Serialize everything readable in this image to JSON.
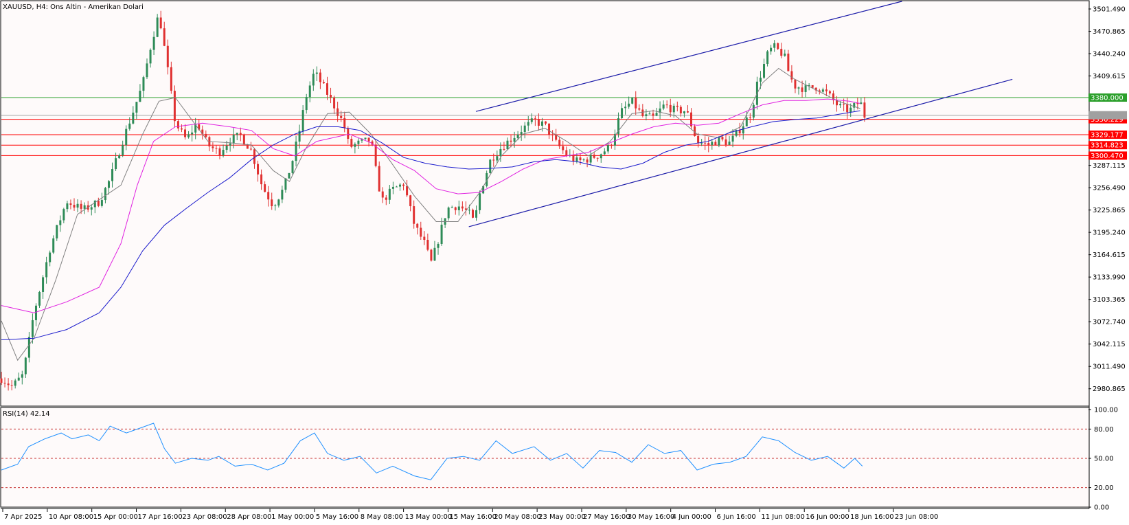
{
  "header": {
    "symbol_label": "XAUUSD, H4:  Ons Altin - Amerikan Dolari"
  },
  "indicator": {
    "label": "RSI(14) 42.14",
    "rsi_value": 42.14,
    "levels": [
      80,
      50,
      20
    ]
  },
  "chart_data": [
    {
      "type": "candlestick",
      "title": "XAUUSD, H4:  Ons Altin - Amerikan Dolari",
      "ylim": [
        2958,
        3510
      ],
      "y_ticks": [
        "3501.490",
        "3470.865",
        "3440.240",
        "3409.615",
        "3380.000",
        "3350.229",
        "3329.177",
        "3314.823",
        "3300.470",
        "3287.115",
        "3256.490",
        "3225.865",
        "3195.240",
        "3164.615",
        "3133.990",
        "3103.365",
        "3072.740",
        "3042.115",
        "3011.490",
        "2980.865"
      ],
      "x_ticks": [
        "7 Apr 2025",
        "10 Apr 08:00",
        "15 Apr 00:00",
        "17 Apr 16:00",
        "23 Apr 08:00",
        "28 Apr 08:00",
        "1 May 00:00",
        "5 May 16:00",
        "8 May 08:00",
        "13 May 00:00",
        "15 May 16:00",
        "20 May 08:00",
        "23 May 00:00",
        "27 May 16:00",
        "30 May 16:00",
        "4 Jun 00:00",
        "6 Jun 16:00",
        "11 Jun 08:00",
        "16 Jun 00:00",
        "18 Jun 16:00",
        "23 Jun 08:00"
      ],
      "horizontal_lines": [
        {
          "price": 3380.0,
          "label": "3380.000",
          "color": "#2ca02c"
        },
        {
          "price": 3350.229,
          "label": "3350.229",
          "color": "#ff0000"
        },
        {
          "price": 3329.177,
          "label": "3329.177",
          "color": "#ff0000"
        },
        {
          "price": 3314.823,
          "label": "3314.823",
          "color": "#ff0000"
        },
        {
          "price": 3300.47,
          "label": "3300.470",
          "color": "#ff0000"
        }
      ],
      "current_price": 3355.786,
      "channel_lines": [
        {
          "name": "upper",
          "from": [
            0.4365,
            3361
          ],
          "to": [
            0.8285,
            3512
          ],
          "color": "#1a1aa8"
        },
        {
          "name": "lower",
          "from": [
            0.43,
            3203
          ],
          "to": [
            0.93,
            3405
          ],
          "color": "#1a1aa8"
        }
      ],
      "price_path": [
        [
          0.0,
          2995
        ],
        [
          0.01,
          2984
        ],
        [
          0.02,
          3000
        ],
        [
          0.03,
          3085
        ],
        [
          0.045,
          3175
        ],
        [
          0.06,
          3238
        ],
        [
          0.075,
          3226
        ],
        [
          0.09,
          3237
        ],
        [
          0.1,
          3268
        ],
        [
          0.11,
          3314
        ],
        [
          0.12,
          3356
        ],
        [
          0.13,
          3398
        ],
        [
          0.138,
          3455
        ],
        [
          0.145,
          3496
        ],
        [
          0.152,
          3428
        ],
        [
          0.16,
          3345
        ],
        [
          0.17,
          3322
        ],
        [
          0.18,
          3345
        ],
        [
          0.19,
          3315
        ],
        [
          0.2,
          3305
        ],
        [
          0.21,
          3322
        ],
        [
          0.22,
          3328
        ],
        [
          0.23,
          3307
        ],
        [
          0.24,
          3258
        ],
        [
          0.25,
          3232
        ],
        [
          0.26,
          3256
        ],
        [
          0.268,
          3295
        ],
        [
          0.275,
          3340
        ],
        [
          0.28,
          3380
        ],
        [
          0.288,
          3415
        ],
        [
          0.295,
          3398
        ],
        [
          0.305,
          3372
        ],
        [
          0.315,
          3343
        ],
        [
          0.32,
          3312
        ],
        [
          0.33,
          3318
        ],
        [
          0.34,
          3322
        ],
        [
          0.345,
          3275
        ],
        [
          0.35,
          3238
        ],
        [
          0.36,
          3254
        ],
        [
          0.37,
          3262
        ],
        [
          0.38,
          3205
        ],
        [
          0.39,
          3178
        ],
        [
          0.395,
          3152
        ],
        [
          0.4,
          3175
        ],
        [
          0.41,
          3228
        ],
        [
          0.42,
          3232
        ],
        [
          0.43,
          3222
        ],
        [
          0.435,
          3208
        ],
        [
          0.44,
          3248
        ],
        [
          0.45,
          3295
        ],
        [
          0.46,
          3312
        ],
        [
          0.47,
          3325
        ],
        [
          0.48,
          3338
        ],
        [
          0.49,
          3348
        ],
        [
          0.5,
          3342
        ],
        [
          0.51,
          3318
        ],
        [
          0.52,
          3302
        ],
        [
          0.53,
          3292
        ],
        [
          0.54,
          3296
        ],
        [
          0.55,
          3302
        ],
        [
          0.56,
          3313
        ],
        [
          0.57,
          3360
        ],
        [
          0.58,
          3375
        ],
        [
          0.59,
          3354
        ],
        [
          0.6,
          3352
        ],
        [
          0.61,
          3370
        ],
        [
          0.62,
          3362
        ],
        [
          0.63,
          3362
        ],
        [
          0.64,
          3320
        ],
        [
          0.65,
          3315
        ],
        [
          0.66,
          3322
        ],
        [
          0.67,
          3318
        ],
        [
          0.68,
          3338
        ],
        [
          0.69,
          3360
        ],
        [
          0.695,
          3398
        ],
        [
          0.7,
          3418
        ],
        [
          0.705,
          3440
        ],
        [
          0.71,
          3450
        ],
        [
          0.72,
          3438
        ],
        [
          0.725,
          3410
        ],
        [
          0.73,
          3396
        ],
        [
          0.74,
          3392
        ],
        [
          0.75,
          3395
        ],
        [
          0.76,
          3385
        ],
        [
          0.77,
          3368
        ],
        [
          0.78,
          3362
        ],
        [
          0.79,
          3375
        ],
        [
          0.794,
          3355
        ]
      ],
      "series": [
        {
          "name": "",
          "color": "#808080",
          "points": [
            [
              0.0,
              3074
            ],
            [
              0.015,
              3020
            ],
            [
              0.03,
              3050
            ],
            [
              0.05,
              3130
            ],
            [
              0.07,
              3220
            ],
            [
              0.09,
              3240
            ],
            [
              0.11,
              3260
            ],
            [
              0.13,
              3330
            ],
            [
              0.145,
              3375
            ],
            [
              0.16,
              3380
            ],
            [
              0.175,
              3350
            ],
            [
              0.19,
              3320
            ],
            [
              0.21,
              3318
            ],
            [
              0.23,
              3315
            ],
            [
              0.25,
              3280
            ],
            [
              0.265,
              3265
            ],
            [
              0.28,
              3310
            ],
            [
              0.3,
              3358
            ],
            [
              0.32,
              3360
            ],
            [
              0.34,
              3330
            ],
            [
              0.36,
              3288
            ],
            [
              0.38,
              3245
            ],
            [
              0.4,
              3210
            ],
            [
              0.42,
              3210
            ],
            [
              0.44,
              3250
            ],
            [
              0.46,
              3300
            ],
            [
              0.48,
              3330
            ],
            [
              0.5,
              3338
            ],
            [
              0.52,
              3320
            ],
            [
              0.54,
              3300
            ],
            [
              0.56,
              3320
            ],
            [
              0.58,
              3358
            ],
            [
              0.6,
              3362
            ],
            [
              0.62,
              3355
            ],
            [
              0.64,
              3330
            ],
            [
              0.66,
              3325
            ],
            [
              0.68,
              3340
            ],
            [
              0.7,
              3400
            ],
            [
              0.715,
              3420
            ],
            [
              0.73,
              3405
            ],
            [
              0.75,
              3390
            ],
            [
              0.77,
              3375
            ],
            [
              0.79,
              3365
            ]
          ]
        },
        {
          "name": "",
          "color": "#e020e0",
          "points": [
            [
              0.0,
              3095
            ],
            [
              0.03,
              3085
            ],
            [
              0.06,
              3100
            ],
            [
              0.09,
              3120
            ],
            [
              0.11,
              3180
            ],
            [
              0.125,
              3260
            ],
            [
              0.14,
              3320
            ],
            [
              0.16,
              3340
            ],
            [
              0.185,
              3345
            ],
            [
              0.21,
              3340
            ],
            [
              0.23,
              3335
            ],
            [
              0.25,
              3310
            ],
            [
              0.27,
              3300
            ],
            [
              0.29,
              3320
            ],
            [
              0.32,
              3330
            ],
            [
              0.34,
              3318
            ],
            [
              0.36,
              3295
            ],
            [
              0.38,
              3280
            ],
            [
              0.4,
              3255
            ],
            [
              0.42,
              3248
            ],
            [
              0.44,
              3250
            ],
            [
              0.46,
              3265
            ],
            [
              0.48,
              3282
            ],
            [
              0.5,
              3295
            ],
            [
              0.52,
              3300
            ],
            [
              0.54,
              3305
            ],
            [
              0.56,
              3318
            ],
            [
              0.58,
              3330
            ],
            [
              0.6,
              3340
            ],
            [
              0.62,
              3345
            ],
            [
              0.64,
              3342
            ],
            [
              0.66,
              3345
            ],
            [
              0.68,
              3358
            ],
            [
              0.7,
              3370
            ],
            [
              0.72,
              3376
            ],
            [
              0.74,
              3376
            ],
            [
              0.76,
              3378
            ],
            [
              0.78,
              3375
            ],
            [
              0.79,
              3372
            ]
          ]
        },
        {
          "name": "",
          "color": "#1a1acc",
          "points": [
            [
              0.0,
              3048
            ],
            [
              0.03,
              3050
            ],
            [
              0.06,
              3062
            ],
            [
              0.09,
              3085
            ],
            [
              0.11,
              3120
            ],
            [
              0.13,
              3170
            ],
            [
              0.15,
              3205
            ],
            [
              0.17,
              3228
            ],
            [
              0.19,
              3250
            ],
            [
              0.21,
              3270
            ],
            [
              0.23,
              3295
            ],
            [
              0.25,
              3315
            ],
            [
              0.27,
              3330
            ],
            [
              0.29,
              3340
            ],
            [
              0.31,
              3340
            ],
            [
              0.33,
              3335
            ],
            [
              0.35,
              3318
            ],
            [
              0.37,
              3298
            ],
            [
              0.39,
              3290
            ],
            [
              0.41,
              3285
            ],
            [
              0.43,
              3282
            ],
            [
              0.45,
              3283
            ],
            [
              0.47,
              3285
            ],
            [
              0.49,
              3292
            ],
            [
              0.51,
              3295
            ],
            [
              0.53,
              3292
            ],
            [
              0.55,
              3285
            ],
            [
              0.57,
              3282
            ],
            [
              0.59,
              3290
            ],
            [
              0.61,
              3305
            ],
            [
              0.63,
              3315
            ],
            [
              0.65,
              3320
            ],
            [
              0.67,
              3332
            ],
            [
              0.69,
              3340
            ],
            [
              0.71,
              3347
            ],
            [
              0.73,
              3350
            ],
            [
              0.75,
              3352
            ],
            [
              0.77,
              3357
            ],
            [
              0.79,
              3362
            ]
          ]
        }
      ]
    },
    {
      "type": "line",
      "title": "RSI(14) 42.14",
      "ylim": [
        0,
        100
      ],
      "y_ticks": [
        "100.00",
        "80.00",
        "50.00",
        "20.00",
        "0.00"
      ],
      "series": [
        {
          "name": "",
          "color": "#1e90ff",
          "points": [
            [
              0.0,
              38
            ],
            [
              0.015,
              44
            ],
            [
              0.025,
              62
            ],
            [
              0.04,
              70
            ],
            [
              0.055,
              76
            ],
            [
              0.065,
              70
            ],
            [
              0.08,
              74
            ],
            [
              0.09,
              68
            ],
            [
              0.1,
              83
            ],
            [
              0.115,
              76
            ],
            [
              0.13,
              82
            ],
            [
              0.14,
              86
            ],
            [
              0.15,
              60
            ],
            [
              0.16,
              45
            ],
            [
              0.175,
              50
            ],
            [
              0.19,
              48
            ],
            [
              0.2,
              52
            ],
            [
              0.215,
              42
            ],
            [
              0.23,
              44
            ],
            [
              0.245,
              38
            ],
            [
              0.26,
              45
            ],
            [
              0.275,
              68
            ],
            [
              0.288,
              76
            ],
            [
              0.3,
              55
            ],
            [
              0.315,
              48
            ],
            [
              0.33,
              52
            ],
            [
              0.345,
              35
            ],
            [
              0.36,
              42
            ],
            [
              0.38,
              32
            ],
            [
              0.395,
              28
            ],
            [
              0.41,
              50
            ],
            [
              0.425,
              52
            ],
            [
              0.44,
              48
            ],
            [
              0.455,
              68
            ],
            [
              0.47,
              55
            ],
            [
              0.49,
              62
            ],
            [
              0.505,
              48
            ],
            [
              0.52,
              55
            ],
            [
              0.535,
              40
            ],
            [
              0.55,
              58
            ],
            [
              0.565,
              56
            ],
            [
              0.58,
              46
            ],
            [
              0.595,
              64
            ],
            [
              0.61,
              55
            ],
            [
              0.625,
              58
            ],
            [
              0.64,
              38
            ],
            [
              0.655,
              44
            ],
            [
              0.67,
              46
            ],
            [
              0.685,
              52
            ],
            [
              0.7,
              72
            ],
            [
              0.715,
              68
            ],
            [
              0.73,
              56
            ],
            [
              0.745,
              48
            ],
            [
              0.76,
              52
            ],
            [
              0.775,
              40
            ],
            [
              0.785,
              50
            ],
            [
              0.792,
              42
            ]
          ]
        }
      ]
    }
  ]
}
